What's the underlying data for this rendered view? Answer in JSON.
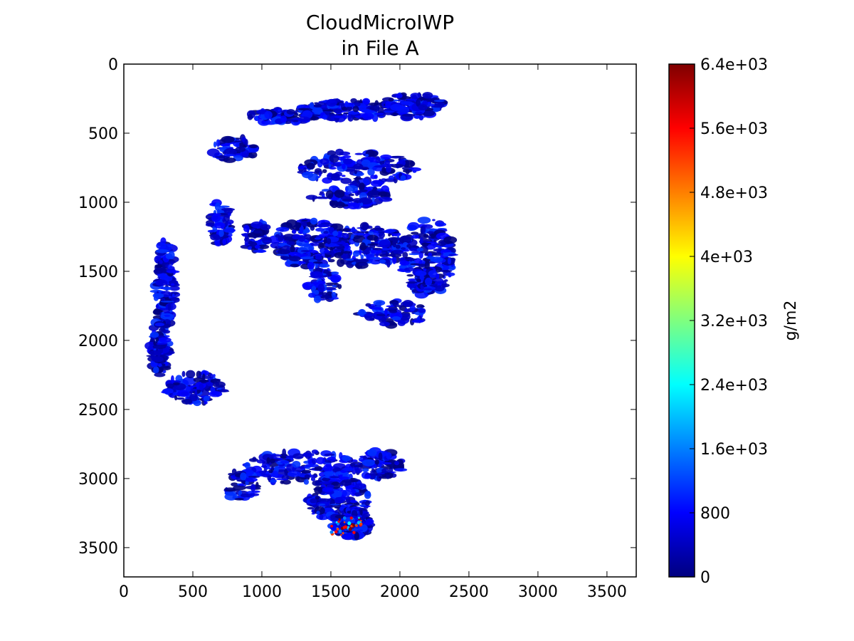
{
  "chart_data": {
    "type": "heatmap",
    "title": [
      "CloudMicroIWP",
      "in File A"
    ],
    "xlabel": "",
    "ylabel": "",
    "xlim": [
      0,
      3712
    ],
    "ylim": [
      3712,
      0
    ],
    "x_ticks": [
      0,
      500,
      1000,
      1500,
      2000,
      2500,
      3000,
      3500
    ],
    "y_ticks": [
      0,
      500,
      1000,
      1500,
      2000,
      2500,
      3000,
      3500
    ],
    "colormap": "jet",
    "colorbar": {
      "label": "g/m2",
      "range": [
        0,
        6400
      ],
      "ticks": [
        0,
        800,
        1600,
        2400,
        3200,
        4000,
        4800,
        5600,
        6400
      ],
      "tick_labels": [
        "0",
        "800",
        "1.6e+03",
        "2.4e+03",
        "3.2e+03",
        "4e+03",
        "4.8e+03",
        "5.6e+03",
        "6.4e+03"
      ],
      "colors": [
        "#00007f",
        "#0000ff",
        "#007fff",
        "#00ffff",
        "#7fff7f",
        "#ffff00",
        "#ff7f00",
        "#ff0000",
        "#7f0000"
      ]
    },
    "missing_value_color": "#ffffff",
    "field_description": "Ice water path over the disk; most values are low (dark blue), with isolated high values (red) near x≈1600, y≈3350."
  }
}
